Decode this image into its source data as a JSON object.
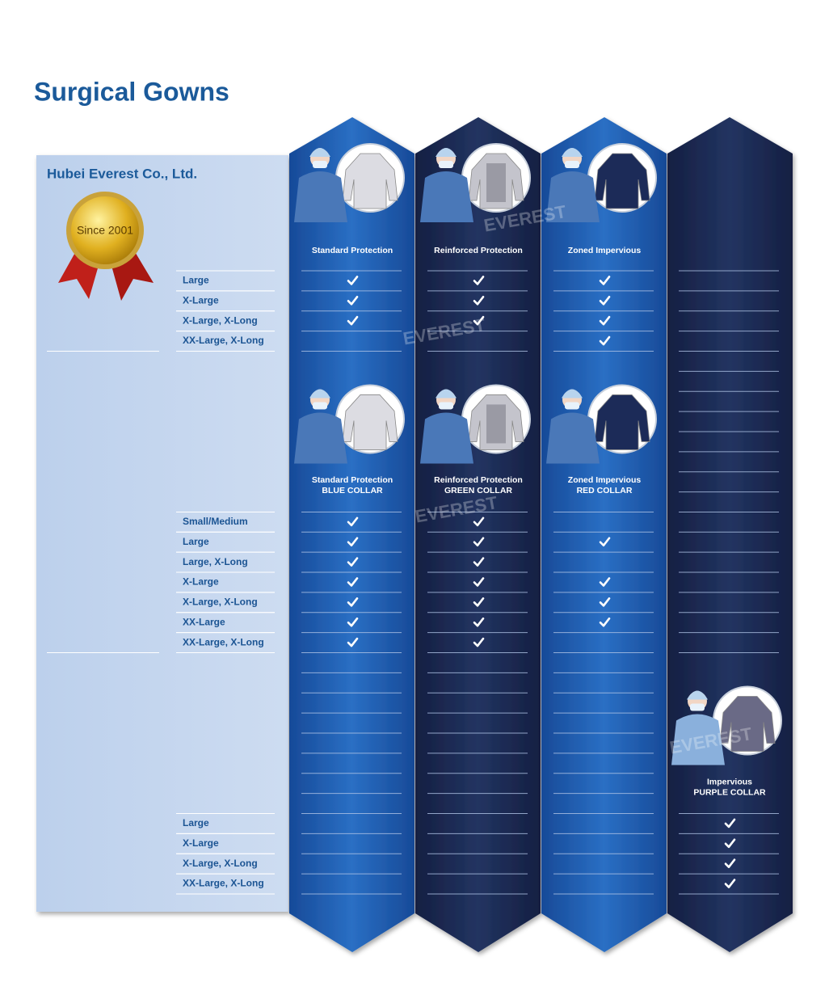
{
  "header": {
    "title": "Surgical Gowns"
  },
  "company": {
    "name": "Hubei Everest Co., Ltd.",
    "badge": "Since 2001"
  },
  "watermark": "EVEREST",
  "sections": [
    {
      "products": [
        {
          "name": "Standard Protection"
        },
        {
          "name": "Reinforced Protection"
        },
        {
          "name": "Zoned Impervious"
        },
        null
      ],
      "rows": [
        {
          "size": "Large",
          "checks": [
            true,
            true,
            true,
            false
          ]
        },
        {
          "size": "X-Large",
          "checks": [
            true,
            true,
            true,
            false
          ]
        },
        {
          "size": "X-Large, X-Long",
          "checks": [
            true,
            true,
            true,
            false
          ]
        },
        {
          "size": "XX-Large, X-Long",
          "checks": [
            false,
            false,
            true,
            false
          ]
        }
      ]
    },
    {
      "products": [
        {
          "name": "Standard Protection",
          "collar": "BLUE COLLAR"
        },
        {
          "name": "Reinforced Protection",
          "collar": "GREEN COLLAR"
        },
        {
          "name": "Zoned Impervious",
          "collar": "RED COLLAR"
        },
        null
      ],
      "rows": [
        {
          "size": "Small/Medium",
          "checks": [
            true,
            true,
            false,
            false
          ]
        },
        {
          "size": "Large",
          "checks": [
            true,
            true,
            true,
            false
          ]
        },
        {
          "size": "Large, X-Long",
          "checks": [
            true,
            true,
            false,
            false
          ]
        },
        {
          "size": "X-Large",
          "checks": [
            true,
            true,
            true,
            false
          ]
        },
        {
          "size": "X-Large, X-Long",
          "checks": [
            true,
            true,
            true,
            false
          ]
        },
        {
          "size": "XX-Large",
          "checks": [
            true,
            true,
            true,
            false
          ]
        },
        {
          "size": "XX-Large, X-Long",
          "checks": [
            true,
            true,
            false,
            false
          ]
        }
      ]
    },
    {
      "products": [
        null,
        null,
        null,
        {
          "name": "Impervious",
          "collar": "PURPLE COLLAR"
        }
      ],
      "rows": [
        {
          "size": "Large",
          "checks": [
            false,
            false,
            false,
            true
          ]
        },
        {
          "size": "X-Large",
          "checks": [
            false,
            false,
            false,
            true
          ]
        },
        {
          "size": "X-Large, X-Long",
          "checks": [
            false,
            false,
            false,
            true
          ]
        },
        {
          "size": "XX-Large, X-Long",
          "checks": [
            false,
            false,
            false,
            true
          ]
        }
      ]
    }
  ]
}
